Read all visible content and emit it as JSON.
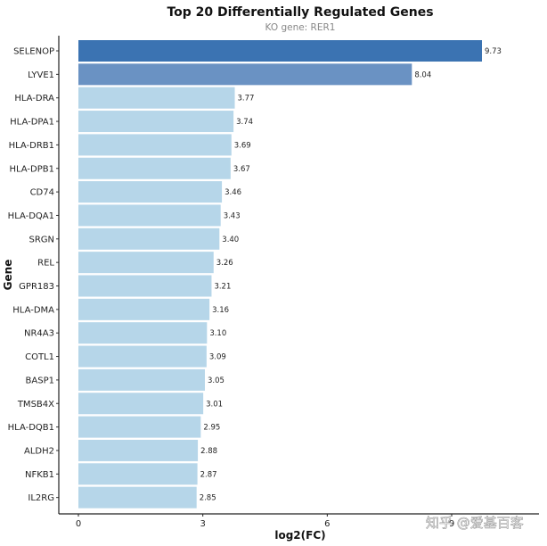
{
  "chart_data": {
    "type": "bar",
    "orientation": "horizontal",
    "title": "Top 20 Differentially Regulated Genes",
    "subtitle": "KO gene: RER1",
    "xlabel": "log2(FC)",
    "ylabel": "Gene",
    "xlim": [
      0,
      9.73
    ],
    "xticks": [
      0,
      3,
      6,
      9
    ],
    "categories": [
      "SELENOP",
      "LYVE1",
      "HLA-DRA",
      "HLA-DPA1",
      "HLA-DRB1",
      "HLA-DPB1",
      "CD74",
      "HLA-DQA1",
      "SRGN",
      "REL",
      "GPR183",
      "HLA-DMA",
      "NR4A3",
      "COTL1",
      "BASP1",
      "TMSB4X",
      "HLA-DQB1",
      "ALDH2",
      "NFKB1",
      "IL2RG"
    ],
    "values": [
      9.73,
      8.04,
      3.77,
      3.74,
      3.69,
      3.67,
      3.46,
      3.43,
      3.4,
      3.26,
      3.21,
      3.16,
      3.1,
      3.09,
      3.05,
      3.01,
      2.95,
      2.88,
      2.87,
      2.85
    ],
    "value_labels": [
      "9.73",
      "8.04",
      "3.77",
      "3.74",
      "3.69",
      "3.67",
      "3.46",
      "3.43",
      "3.40",
      "3.26",
      "3.21",
      "3.16",
      "3.10",
      "3.09",
      "3.05",
      "3.01",
      "2.95",
      "2.88",
      "2.87",
      "2.85"
    ],
    "grid": false,
    "colors": {
      "top1": "#3b73b2",
      "top2": "#6a92c3",
      "rest": "#b6d6e9"
    }
  },
  "watermark": "知乎 @爱基百客"
}
